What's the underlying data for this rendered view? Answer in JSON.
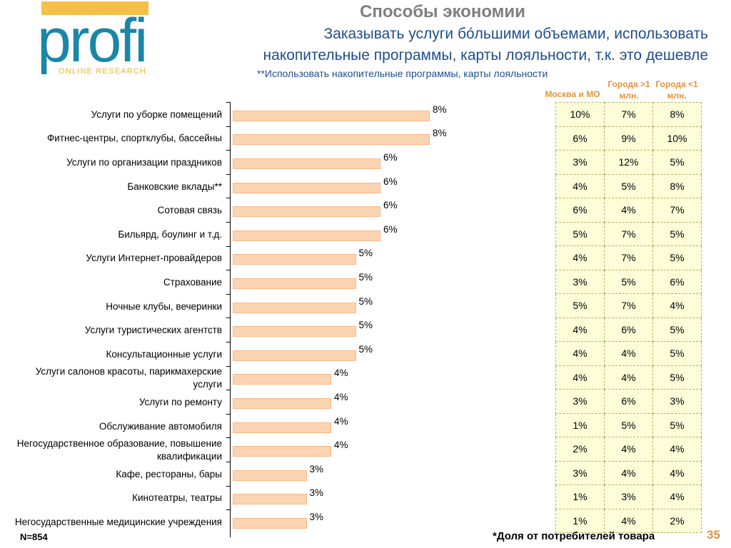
{
  "logo": {
    "word": "profi",
    "sub": "ONLINE RESEARCH"
  },
  "title": "Способы экономии",
  "subtitle_line1": "Заказывать услуги бо́льшими объемами, использовать",
  "subtitle_line2": "накопительные программы, карты лояльности, т.к. это дешевле",
  "note": "**Использовать накопительные программы, карты лояльности",
  "column_headers": [
    "Москва и МО",
    "Города >1 млн.",
    "Города <1 млн."
  ],
  "footer": {
    "n": "N=854",
    "share": "*Доля  от потребителей товара",
    "page": "35"
  },
  "colors": {
    "bar": "#fdd4b1",
    "accent": "#e5923a",
    "title_blue": "#1f4e8c",
    "logo_blue": "#1a87a6"
  },
  "chart_data": {
    "type": "bar",
    "orientation": "horizontal",
    "title": "Способы экономии",
    "categories": [
      "Услуги по уборке помещений",
      "Фитнес-центры, спортклубы, бассейны",
      "Услуги по организации праздников",
      "Банковские вклады**",
      "Сотовая связь",
      "Бильярд, боулинг и т.д.",
      "Услуги Интернет-провайдеров",
      "Страхование",
      "Ночные клубы, вечеринки",
      "Услуги туристических агентств",
      "Консультационные услуги",
      "Услуги салонов красоты, парикмахерские услуги",
      "Услуги по ремонту",
      "Обслуживание автомобиля",
      "Негосударственное образование, повышение квалификации",
      "Кафе, рестораны, бары",
      "Кинотеатры, театры",
      "Негосударственные медицинские учреждения"
    ],
    "values": [
      8,
      8,
      6,
      6,
      6,
      6,
      5,
      5,
      5,
      5,
      5,
      4,
      4,
      4,
      4,
      3,
      3,
      3
    ],
    "value_labels": [
      "8%",
      "8%",
      "6%",
      "6%",
      "6%",
      "6%",
      "5%",
      "5%",
      "5%",
      "5%",
      "5%",
      "4%",
      "4%",
      "4%",
      "4%",
      "3%",
      "3%",
      "3%"
    ],
    "xlim": [
      0,
      10
    ],
    "table": [
      [
        "10%",
        "7%",
        "8%"
      ],
      [
        "6%",
        "9%",
        "10%"
      ],
      [
        "3%",
        "12%",
        "5%"
      ],
      [
        "4%",
        "5%",
        "8%"
      ],
      [
        "6%",
        "4%",
        "7%"
      ],
      [
        "5%",
        "7%",
        "5%"
      ],
      [
        "4%",
        "7%",
        "5%"
      ],
      [
        "3%",
        "5%",
        "6%"
      ],
      [
        "5%",
        "7%",
        "4%"
      ],
      [
        "4%",
        "6%",
        "5%"
      ],
      [
        "4%",
        "4%",
        "5%"
      ],
      [
        "4%",
        "4%",
        "5%"
      ],
      [
        "3%",
        "6%",
        "3%"
      ],
      [
        "1%",
        "5%",
        "5%"
      ],
      [
        "2%",
        "4%",
        "4%"
      ],
      [
        "3%",
        "4%",
        "4%"
      ],
      [
        "1%",
        "3%",
        "4%"
      ],
      [
        "1%",
        "4%",
        "2%"
      ]
    ]
  }
}
